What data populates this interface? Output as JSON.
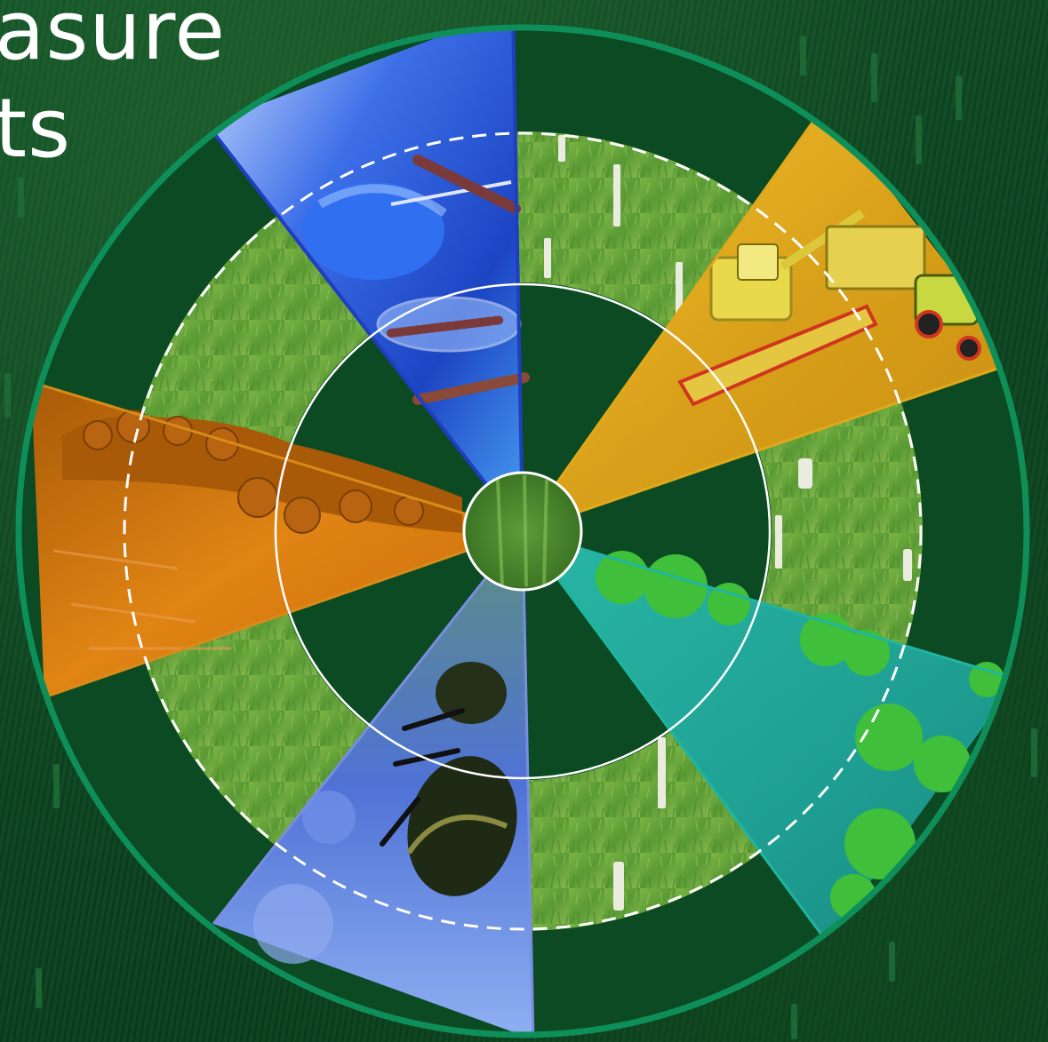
{
  "headline": {
    "line1": "asure",
    "line2": "ts"
  },
  "palette": {
    "background": "#0b3d1c",
    "ring": "#0e8f5a",
    "grass": "#6aa23a",
    "lab": "#2a5bd7",
    "harvest": "#e7b21a",
    "wetland": "#1aa89a",
    "pollinator": "#6f8fe6",
    "forest": "#d9790e"
  },
  "wheel": {
    "segments": [
      {
        "theme": "lab-research",
        "icon": "gloved-hand-tweezers-icon"
      },
      {
        "theme": "crop-harvest",
        "icon": "combine-harvester-icon"
      },
      {
        "theme": "wetland-mangrove",
        "icon": "mangrove-trees-icon"
      },
      {
        "theme": "pollinator-bee",
        "icon": "bee-icon"
      },
      {
        "theme": "forest-clearing",
        "icon": "forest-icon"
      }
    ]
  }
}
